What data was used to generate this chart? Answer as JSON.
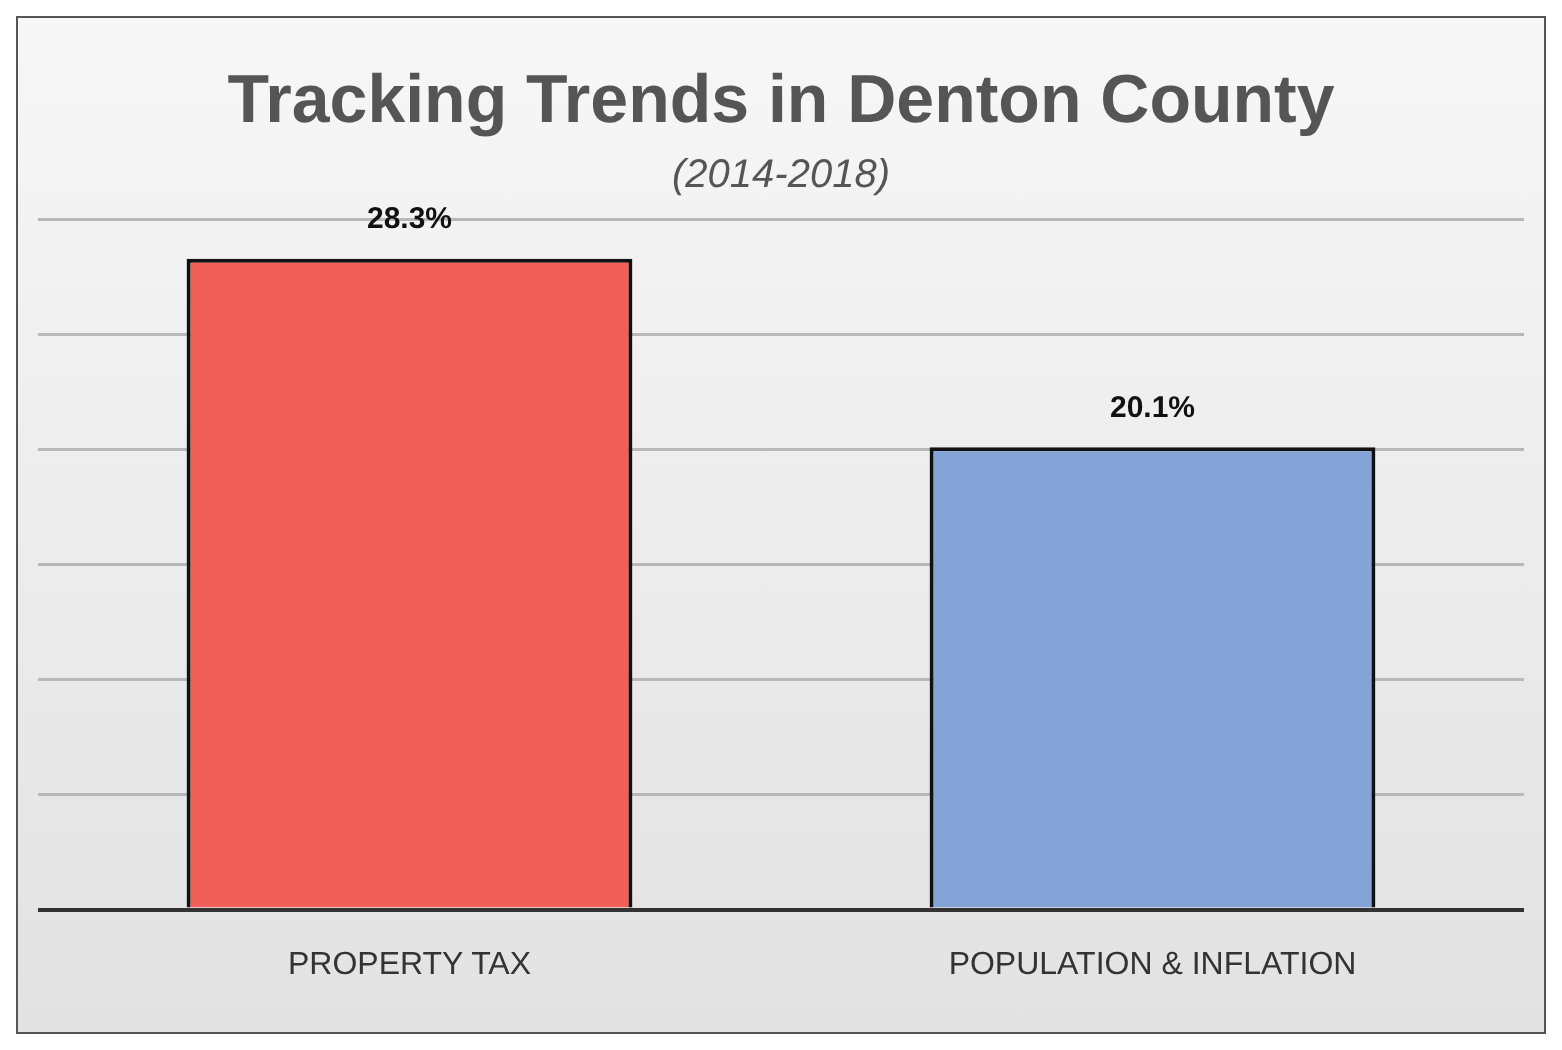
{
  "chart_data": {
    "type": "bar",
    "title": "Tracking Trends in Denton County",
    "subtitle": "(2014-2018)",
    "categories": [
      "PROPERTY TAX",
      "POPULATION & INFLATION"
    ],
    "values": [
      28.3,
      20.1
    ],
    "colors": [
      "#f25f58",
      "#84a4d8"
    ],
    "value_labels": [
      "28.3%",
      "20.1%"
    ],
    "grid": "y",
    "legend": false,
    "tick_labels": "x"
  }
}
